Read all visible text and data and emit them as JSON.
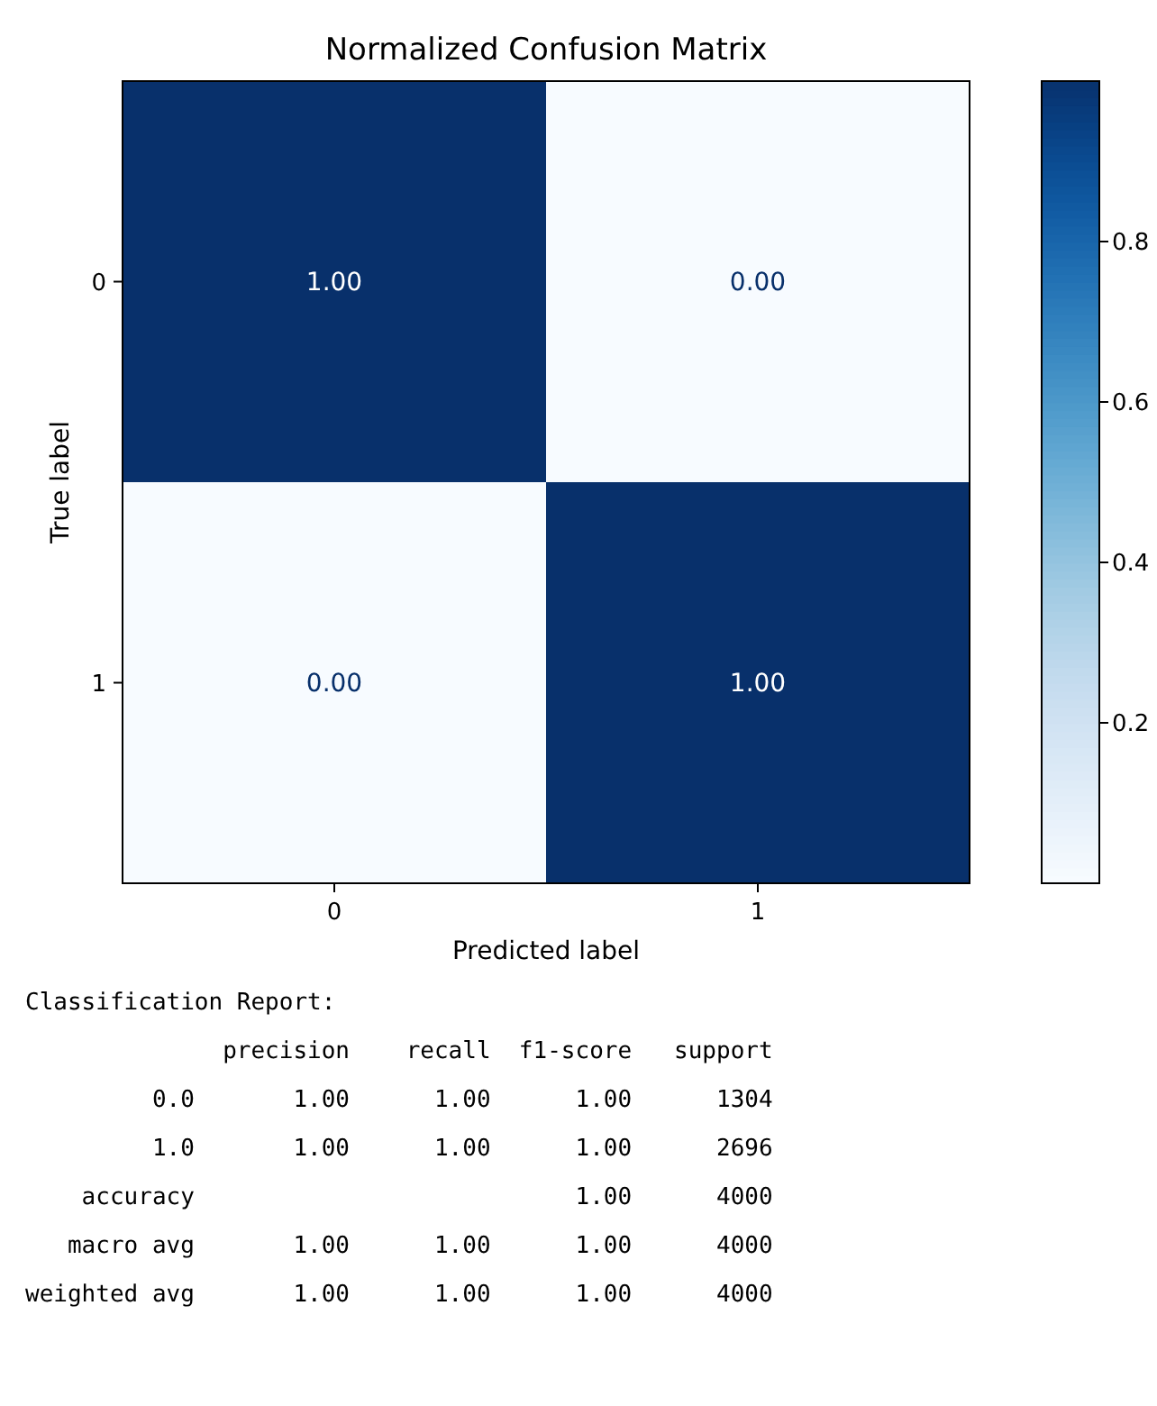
{
  "chart_data": [
    {
      "type": "heatmap",
      "title": "Normalized Confusion Matrix",
      "xlabel": "Predicted label",
      "ylabel": "True label",
      "categories": [
        "0",
        "1"
      ],
      "y_categories": [
        "0",
        "1"
      ],
      "cells": [
        [
          1.0,
          0.0
        ],
        [
          0.0,
          1.0
        ]
      ],
      "cell_labels": [
        [
          "1.00",
          "0.00"
        ],
        [
          "0.00",
          "1.00"
        ]
      ],
      "clim": [
        0,
        1
      ],
      "cticks": [
        0.2,
        0.4,
        0.6,
        0.8
      ]
    },
    {
      "type": "other",
      "title": "Classification Report:",
      "annotations": [
        "              precision    recall  f1-score   support",
        "         0.0       1.00      1.00      1.00      1304",
        "         1.0       1.00      1.00      1.00      2696",
        "    accuracy                           1.00      4000",
        "   macro avg       1.00      1.00      1.00      4000",
        "weighted avg       1.00      1.00      1.00      4000"
      ]
    }
  ]
}
